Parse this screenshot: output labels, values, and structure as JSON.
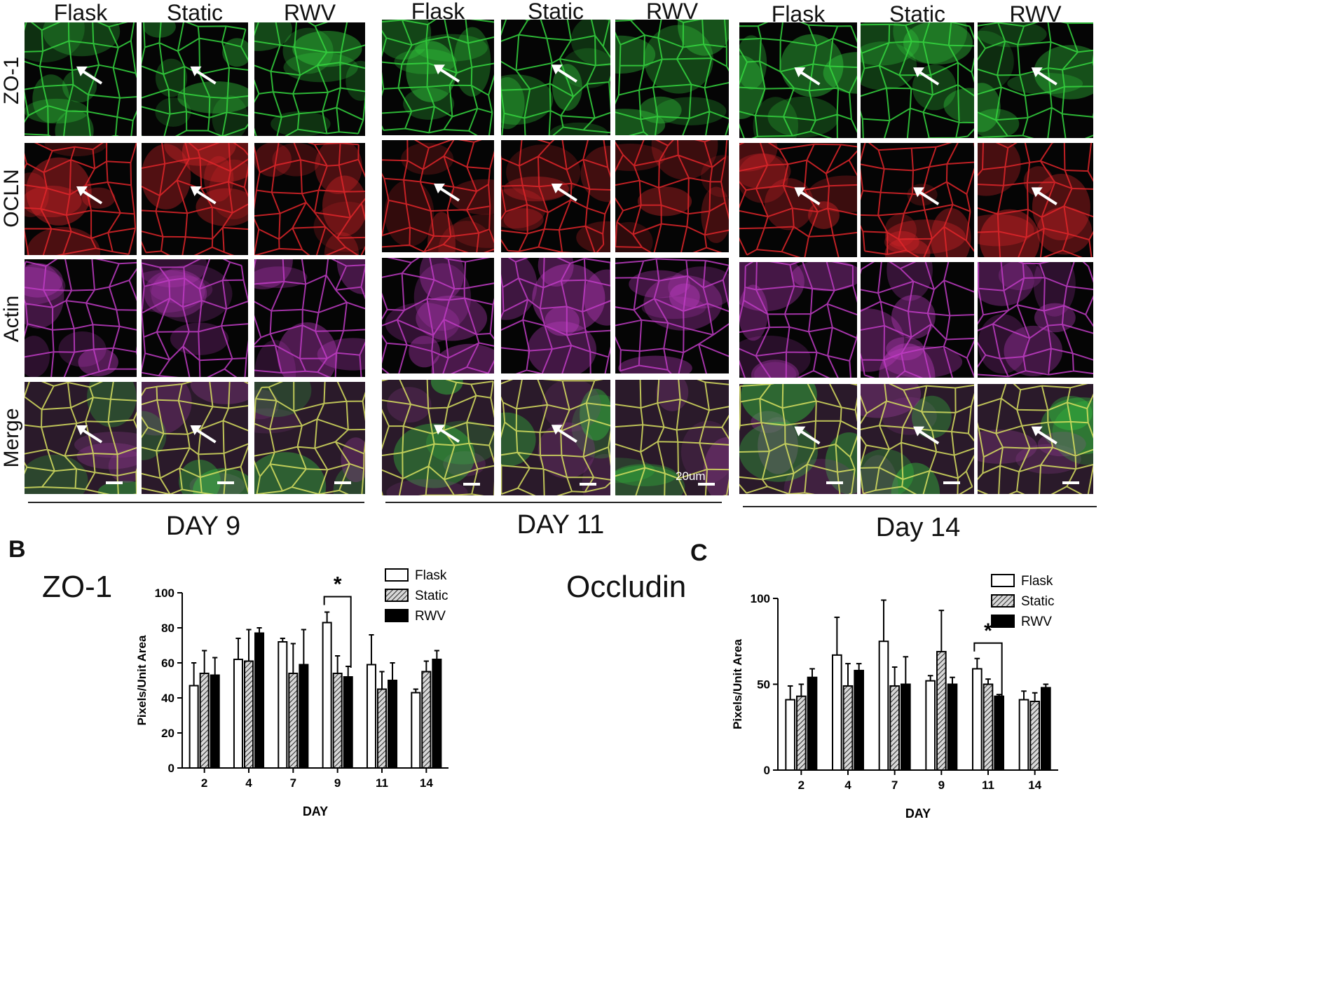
{
  "columns": [
    "Flask",
    "Static",
    "RWV"
  ],
  "rows": [
    "ZO-1",
    "OCLN",
    "Actin",
    "Merge"
  ],
  "groups": [
    "DAY 9",
    "DAY 11",
    "Day 14"
  ],
  "scale_bar_label": "20um",
  "colors": {
    "zo1": "#35d640",
    "ocln": "#e0262a",
    "actin": "#c03cc4",
    "merge": "#6a4a7a"
  },
  "panel_b": {
    "letter": "B",
    "title": "ZO-1",
    "chart_data": {
      "type": "bar",
      "categories": [
        "2",
        "4",
        "7",
        "9",
        "11",
        "14"
      ],
      "series": [
        {
          "name": "Flask",
          "values": [
            47,
            62,
            72,
            83,
            59,
            43
          ],
          "errors": [
            13,
            12,
            2,
            6,
            17,
            2
          ]
        },
        {
          "name": "Static",
          "values": [
            54,
            61,
            54,
            54,
            45,
            55
          ],
          "errors": [
            13,
            18,
            17,
            10,
            10,
            6
          ]
        },
        {
          "name": "RWV",
          "values": [
            53,
            77,
            59,
            52,
            50,
            62
          ],
          "errors": [
            10,
            3,
            20,
            6,
            10,
            5
          ]
        }
      ],
      "xlabel": "DAY",
      "ylabel": "Pixels/Unit Area",
      "ylim": [
        0,
        100
      ],
      "yticks": [
        0,
        20,
        40,
        60,
        80,
        100
      ],
      "significance": {
        "category": "9",
        "label": "*"
      },
      "legend": "top-right"
    }
  },
  "panel_c": {
    "letter": "C",
    "title": "Occludin",
    "chart_data": {
      "type": "bar",
      "categories": [
        "2",
        "4",
        "7",
        "9",
        "11",
        "14"
      ],
      "series": [
        {
          "name": "Flask",
          "values": [
            41,
            67,
            75,
            52,
            59,
            41
          ],
          "errors": [
            8,
            22,
            24,
            3,
            6,
            5
          ]
        },
        {
          "name": "Static",
          "values": [
            43,
            49,
            49,
            69,
            50,
            40
          ],
          "errors": [
            7,
            13,
            11,
            24,
            3,
            5
          ]
        },
        {
          "name": "RWV",
          "values": [
            54,
            58,
            50,
            50,
            43,
            48
          ],
          "errors": [
            5,
            4,
            16,
            4,
            1,
            2
          ]
        }
      ],
      "xlabel": "DAY",
      "ylabel": "Pixels/Unit Area",
      "ylim": [
        0,
        100
      ],
      "yticks": [
        0,
        50,
        100
      ],
      "significance": {
        "category": "11",
        "label": "*"
      },
      "legend": "top-right"
    }
  }
}
